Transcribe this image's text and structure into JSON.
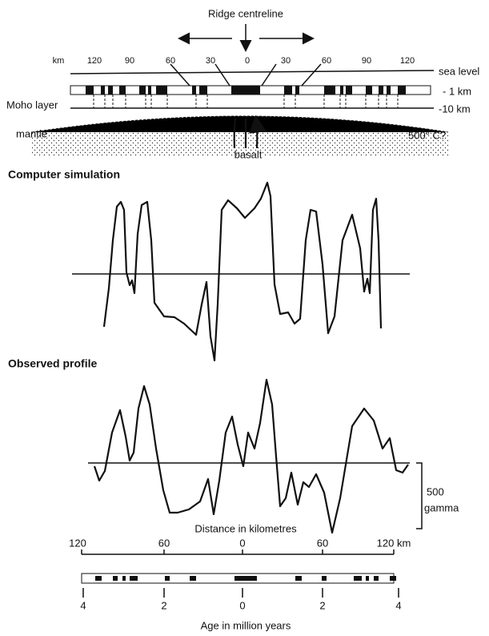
{
  "header": {
    "title": "Ridge centreline"
  },
  "top_scale": {
    "unit": "km",
    "labels": [
      "120",
      "90",
      "60",
      "30",
      "0",
      "30",
      "60",
      "90",
      "120"
    ]
  },
  "layers": {
    "sea_level": "sea level",
    "crust_depth": "- 1 km",
    "moho": "Moho layer",
    "moho_depth": "-10 km",
    "mantle": "mantle",
    "temperature": "500° C?",
    "basalt": "basalt"
  },
  "panels": {
    "simulation": "Computer simulation",
    "observed": "Observed profile"
  },
  "scale_bar": {
    "value": "500",
    "unit": "gamma"
  },
  "distance_axis": {
    "title": "Distance in kilometres",
    "labels": [
      "120",
      "60",
      "0",
      "60",
      "120 km"
    ]
  },
  "age_axis": {
    "title": "Age in million years",
    "labels": [
      "4",
      "2",
      "0",
      "2",
      "4"
    ]
  }
}
